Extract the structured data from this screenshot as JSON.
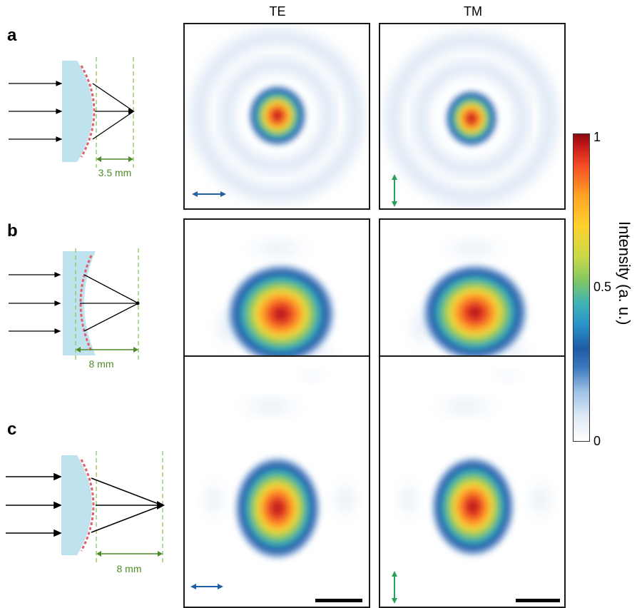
{
  "columns": {
    "te": "TE",
    "tm": "TM"
  },
  "rows": [
    {
      "label": "a",
      "dimension": "3.5 mm"
    },
    {
      "label": "b",
      "dimension": "8 mm"
    },
    {
      "label": "c",
      "dimension": "8 mm"
    }
  ],
  "colorbar": {
    "max": "1",
    "mid": "0.5",
    "min": "0",
    "label": "Intensity (a. u.)"
  },
  "colors": {
    "te_arrow": "#1f5fa6",
    "tm_arrow": "#2aa05a",
    "dim_green": "#4f8a2b",
    "lens": "#bfe3ee",
    "meta_surface": "#e0606a"
  }
}
